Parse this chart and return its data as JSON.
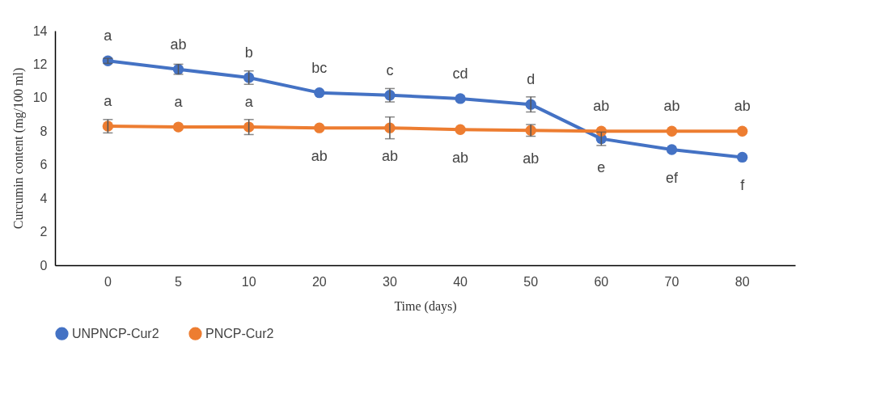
{
  "chart_data": {
    "type": "line",
    "xlabel": "Time (days)",
    "ylabel": "Curcumin content (mg/100 ml)",
    "categories": [
      "0",
      "5",
      "10",
      "20",
      "30",
      "40",
      "50",
      "60",
      "70",
      "80"
    ],
    "ylim": [
      0,
      14
    ],
    "yticks": [
      0,
      2,
      4,
      6,
      8,
      10,
      12,
      14
    ],
    "grid": false,
    "legend": "bottom",
    "marker": "circle",
    "line_style": "solid",
    "series": [
      {
        "name": "UNPNCP-Cur2",
        "color": "#4472c4",
        "values": [
          12.2,
          11.7,
          11.2,
          10.3,
          10.15,
          9.95,
          9.6,
          7.55,
          6.9,
          6.45
        ],
        "errors": [
          0.15,
          0.3,
          0.4,
          null,
          0.4,
          null,
          0.45,
          0.4,
          null,
          null
        ]
      },
      {
        "name": "PNCP-Cur2",
        "color": "#ed7d31",
        "values": [
          8.3,
          8.25,
          8.25,
          8.2,
          8.2,
          8.1,
          8.05,
          8.0,
          8.0,
          8.0
        ],
        "errors": [
          0.4,
          null,
          0.45,
          null,
          0.65,
          null,
          0.35,
          null,
          null,
          null
        ]
      }
    ],
    "annotations": [
      {
        "text": "a",
        "x": "0",
        "y": 12.2
      },
      {
        "text": "ab",
        "x": "5",
        "y": 11.7
      },
      {
        "text": "b",
        "x": "10",
        "y": 11.2
      },
      {
        "text": "bc",
        "x": "20",
        "y": 10.3
      },
      {
        "text": "c",
        "x": "30",
        "y": 10.15
      },
      {
        "text": "cd",
        "x": "40",
        "y": 9.95
      },
      {
        "text": "d",
        "x": "50",
        "y": 9.6
      },
      {
        "text": "e",
        "x": "60",
        "y": 7.55
      },
      {
        "text": "ef",
        "x": "70",
        "y": 6.9
      },
      {
        "text": "f",
        "x": "80",
        "y": 6.45
      },
      {
        "text": "a",
        "x": "0",
        "y": 8.3
      },
      {
        "text": "a",
        "x": "5",
        "y": 8.25
      },
      {
        "text": "a",
        "x": "10",
        "y": 8.25
      },
      {
        "text": "ab",
        "x": "20",
        "y": 8.2
      },
      {
        "text": "ab",
        "x": "30",
        "y": 8.2
      },
      {
        "text": "ab",
        "x": "40",
        "y": 8.1
      },
      {
        "text": "ab",
        "x": "50",
        "y": 8.05
      },
      {
        "text": "ab",
        "x": "60",
        "y": 8.0
      },
      {
        "text": "ab",
        "x": "70",
        "y": 8.0
      },
      {
        "text": "ab",
        "x": "80",
        "y": 8.0
      }
    ]
  }
}
